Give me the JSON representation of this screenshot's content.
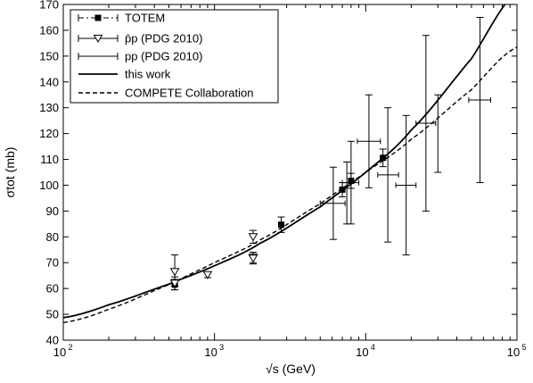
{
  "chart_data": {
    "type": "line",
    "title": "",
    "xlabel": "√s (GeV)",
    "ylabel": "σtot (mb)",
    "xscale": "log",
    "xlim": [
      100,
      100000
    ],
    "ylim": [
      40,
      170
    ],
    "grid": false,
    "legend_position": "top-left",
    "x_ticks": [
      {
        "value": 100,
        "label": "10",
        "exp": "2"
      },
      {
        "value": 1000,
        "label": "10",
        "exp": "3"
      },
      {
        "value": 10000,
        "label": "10",
        "exp": "4"
      },
      {
        "value": 100000,
        "label": "10",
        "exp": "5"
      }
    ],
    "y_ticks": [
      40,
      50,
      60,
      70,
      80,
      90,
      100,
      110,
      120,
      130,
      140,
      150,
      160,
      170
    ],
    "legend": [
      {
        "label": "TOTEM",
        "style": "totem"
      },
      {
        "label": "p̄p (PDG 2010)",
        "style": "ppbar"
      },
      {
        "label": "pp (PDG 2010)",
        "style": "pp"
      },
      {
        "label": "this work",
        "style": "solid"
      },
      {
        "label": "COMPETE Collaboration",
        "style": "dashed"
      }
    ],
    "series": [
      {
        "name": "TOTEM",
        "marker": "square",
        "points": [
          {
            "x": 546,
            "y": 61.5,
            "ylo": 59.5,
            "yhi": 63.5
          },
          {
            "x": 2760,
            "y": 84.7,
            "ylo": 81.7,
            "yhi": 87.7
          },
          {
            "x": 7000,
            "y": 98.3,
            "ylo": 95.5,
            "yhi": 101.0
          },
          {
            "x": 8000,
            "y": 101.7,
            "ylo": 98.8,
            "yhi": 104.6
          },
          {
            "x": 13000,
            "y": 110.6,
            "ylo": 107.2,
            "yhi": 114.0
          }
        ]
      },
      {
        "name": "p̄p (PDG 2010)",
        "marker": "triangle-down",
        "points": [
          {
            "x": 546,
            "y": 66.5,
            "ylo": 61,
            "yhi": 73
          },
          {
            "x": 546,
            "y": 62.0,
            "ylo": 59.5,
            "yhi": 64.5
          },
          {
            "x": 900,
            "y": 65.3,
            "ylo": 64.2,
            "yhi": 66.3
          },
          {
            "x": 1800,
            "y": 80.0,
            "ylo": 77.5,
            "yhi": 82.5
          },
          {
            "x": 1800,
            "y": 72.0,
            "ylo": 70.0,
            "yhi": 74.0
          },
          {
            "x": 1800,
            "y": 71.7,
            "ylo": 69.5,
            "yhi": 74.0
          }
        ]
      },
      {
        "name": "pp (PDG 2010)",
        "marker": "none",
        "points": [
          {
            "x": 6100,
            "y": 93.0,
            "ylo": 79,
            "yhi": 107,
            "xlo": 5000,
            "xhi": 7300
          },
          {
            "x": 7500,
            "y": 97.0,
            "ylo": 85,
            "yhi": 109
          },
          {
            "x": 8000,
            "y": 101.0,
            "ylo": 85,
            "yhi": 117,
            "xlo": 7000,
            "xhi": 9000
          },
          {
            "x": 10500,
            "y": 117.0,
            "ylo": 99,
            "yhi": 135,
            "xlo": 8800,
            "xhi": 12500
          },
          {
            "x": 14000,
            "y": 104.0,
            "ylo": 78,
            "yhi": 130,
            "xlo": 12000,
            "xhi": 16500
          },
          {
            "x": 18500,
            "y": 100.0,
            "ylo": 73,
            "yhi": 127,
            "xlo": 15800,
            "xhi": 21500
          },
          {
            "x": 25000,
            "y": 124.0,
            "ylo": 90,
            "yhi": 158,
            "xlo": 21500,
            "xhi": 29000
          },
          {
            "x": 30000,
            "y": 120.0,
            "ylo": 105,
            "yhi": 135
          },
          {
            "x": 57000,
            "y": 133.0,
            "ylo": 101,
            "yhi": 165,
            "xlo": 48000,
            "xhi": 67000
          }
        ]
      },
      {
        "name": "this work",
        "style": "solid",
        "x": [
          100,
          200,
          500,
          1000,
          2000,
          5000,
          10000,
          20000,
          50000,
          100000
        ],
        "y": [
          48.7,
          53.7,
          61.7,
          68.8,
          77.5,
          91.6,
          105.0,
          121.4,
          149.0,
          175.0
        ]
      },
      {
        "name": "COMPETE Collaboration",
        "style": "dashed",
        "x": [
          100,
          200,
          500,
          1000,
          2000,
          5000,
          10000,
          20000,
          50000,
          100000
        ],
        "y": [
          46.8,
          52.0,
          61.5,
          70.0,
          78.8,
          92.8,
          105.0,
          117.8,
          137.0,
          153.5
        ]
      }
    ]
  }
}
